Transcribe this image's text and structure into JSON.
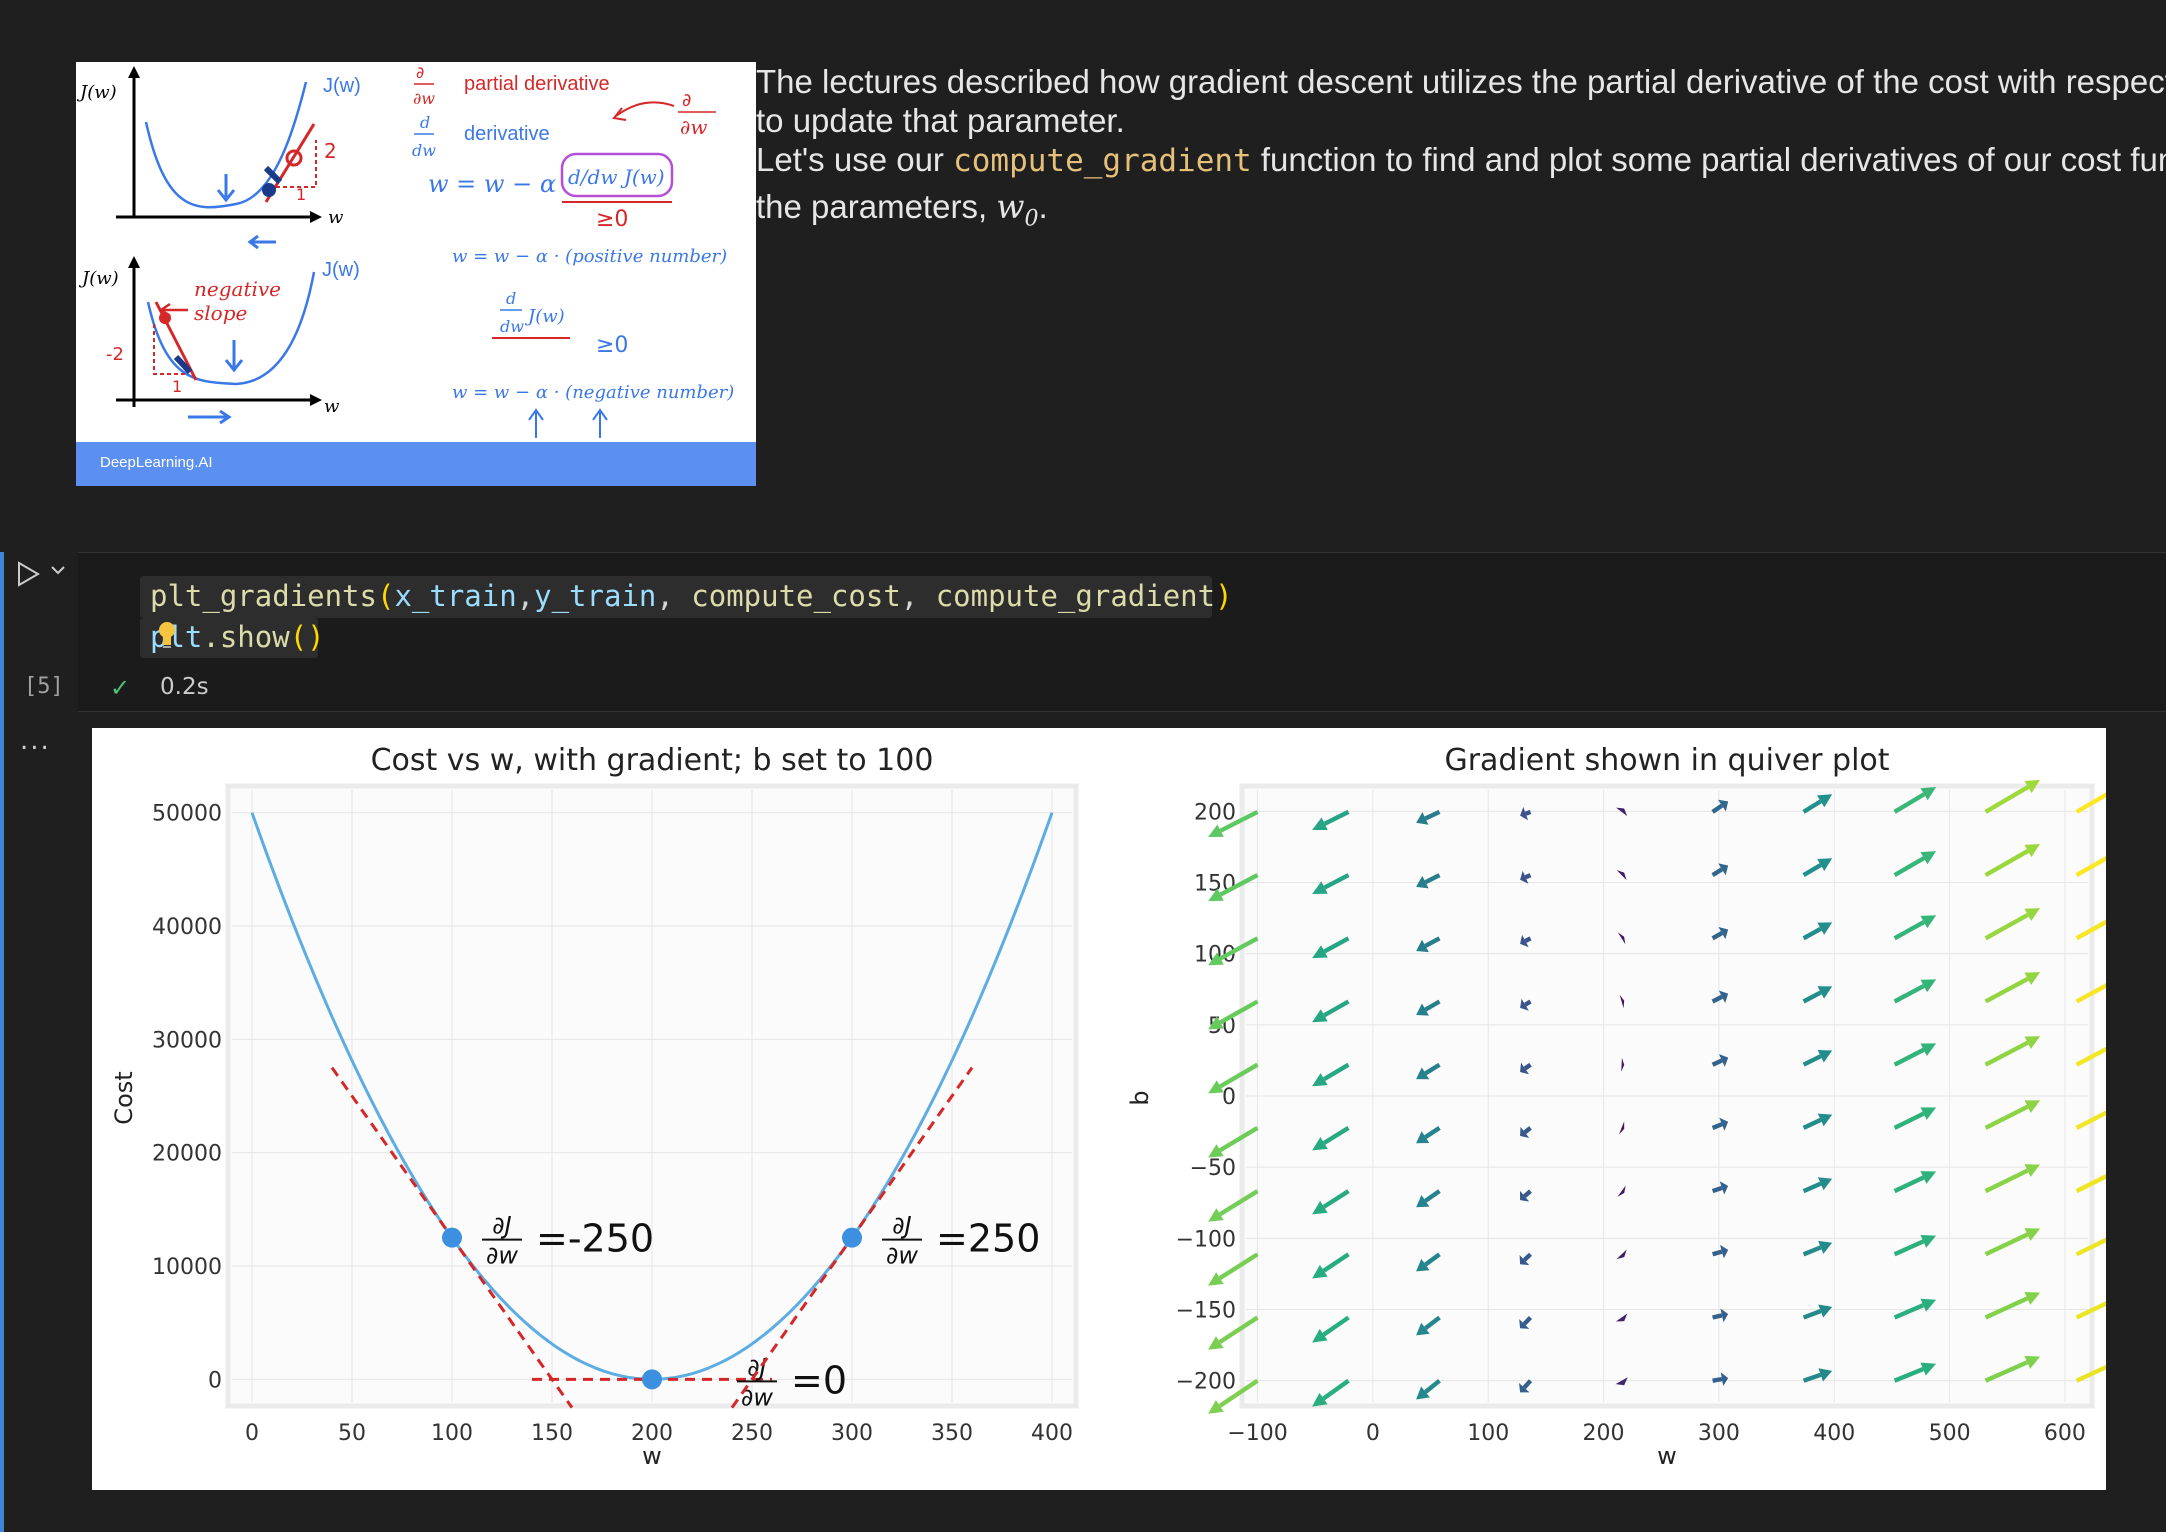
{
  "markdown": {
    "image_footer": "DeepLearning.AI",
    "slide": {
      "jw_label": "J(w)",
      "w_label": "w",
      "partial_symbol": "∂",
      "partial_label": "partial derivative",
      "derivative_label": "derivative",
      "d_label": "d",
      "dw_label": "dw",
      "update_rule": "w = w − α",
      "dJ_box": "d/dw J(w)",
      "ge_zero": "≥0",
      "pos_rule": "w = w − α · (positive number)",
      "neg_rule": "w = w − α · (negative number)",
      "negative_slope": "negative",
      "slope": "slope",
      "num_2": "2",
      "num_1": "1",
      "num_neg2": "-2"
    },
    "para1_line1": "The lectures described how gradient descent utilizes the partial derivative of the cost with respect to a parameter at a point",
    "para1_line2": "to update that parameter.",
    "para2_prefix": "Let's use our ",
    "para2_code": "compute_gradient",
    "para2_suffix": " function to find and plot some partial derivatives of our cost function relative to one of",
    "para2_line2_prefix": "the parameters, ",
    "para2_math": "w",
    "para2_math_sub": "0",
    "para2_line2_suffix": "."
  },
  "cell": {
    "line1": {
      "fn": "plt_gradients",
      "open": "(",
      "a1": "x_train",
      "c1": ",",
      "a2": "y_train",
      "c2": ", ",
      "a3": "compute_cost",
      "c3": ", ",
      "a4": "compute_gradient",
      "close": ")"
    },
    "line2": {
      "obj": "plt",
      "method": ".show",
      "parens": "()"
    },
    "exec_count": "[5]",
    "exec_time": "0.2s",
    "output_dots": "..."
  },
  "colors": {
    "curve": "#5dade2",
    "dot": "#3d8fe0",
    "tangent": "#d62728",
    "code_fn": "#dcdcaa",
    "code_arg": "#9cdcfe"
  },
  "chart_data": [
    {
      "type": "line",
      "title": "Cost vs w, with gradient; b set to 100",
      "xlabel": "w",
      "ylabel": "Cost",
      "xlim": [
        -10,
        410
      ],
      "ylim": [
        -2000,
        52000
      ],
      "xticks": [
        0,
        50,
        100,
        150,
        200,
        250,
        300,
        350,
        400
      ],
      "yticks": [
        0,
        10000,
        20000,
        30000,
        40000,
        50000
      ],
      "curve": {
        "vertex_w": 200,
        "a": 1.25
      },
      "points": [
        {
          "w": 100,
          "cost": 12500,
          "grad": -250,
          "label": "=-250"
        },
        {
          "w": 200,
          "cost": 0,
          "grad": 0,
          "label": "=0"
        },
        {
          "w": 300,
          "cost": 12500,
          "grad": 250,
          "label": "=250"
        }
      ],
      "grad_symbol_num": "∂J",
      "grad_symbol_den": "∂w",
      "grid": true
    },
    {
      "type": "quiver",
      "title": "Gradient shown in quiver plot",
      "xlabel": "w",
      "ylabel": "b",
      "xlim": [
        -110,
        620
      ],
      "ylim": [
        -215,
        215
      ],
      "xticks": [
        -100,
        0,
        100,
        200,
        300,
        400,
        500,
        600
      ],
      "yticks": [
        -200,
        -150,
        -100,
        -50,
        0,
        50,
        100,
        150,
        200
      ],
      "grid_w_start": -100,
      "grid_w_step": 78.9,
      "grid_w_count": 10,
      "grid_b_start": -200,
      "grid_b_step": 44.4,
      "grid_b_count": 10,
      "gradient_model": {
        "w_center": 200,
        "b_center": 100
      },
      "grid": true
    }
  ]
}
